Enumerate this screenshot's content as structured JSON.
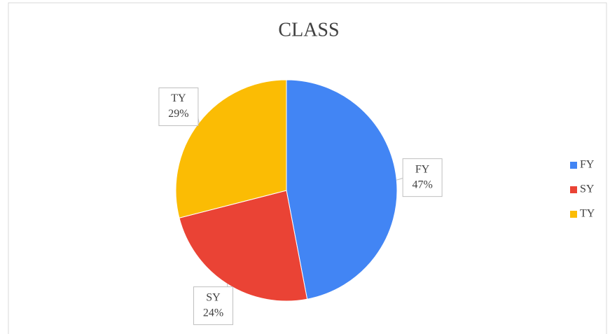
{
  "chart_data": {
    "type": "pie",
    "title": "CLASS",
    "categories": [
      "FY",
      "SY",
      "TY"
    ],
    "values": [
      47,
      24,
      29
    ],
    "value_labels": [
      "47%",
      "24%",
      "29%"
    ],
    "colors": [
      "#4285f4",
      "#ea4335",
      "#fbbc04"
    ],
    "legend": "right"
  }
}
